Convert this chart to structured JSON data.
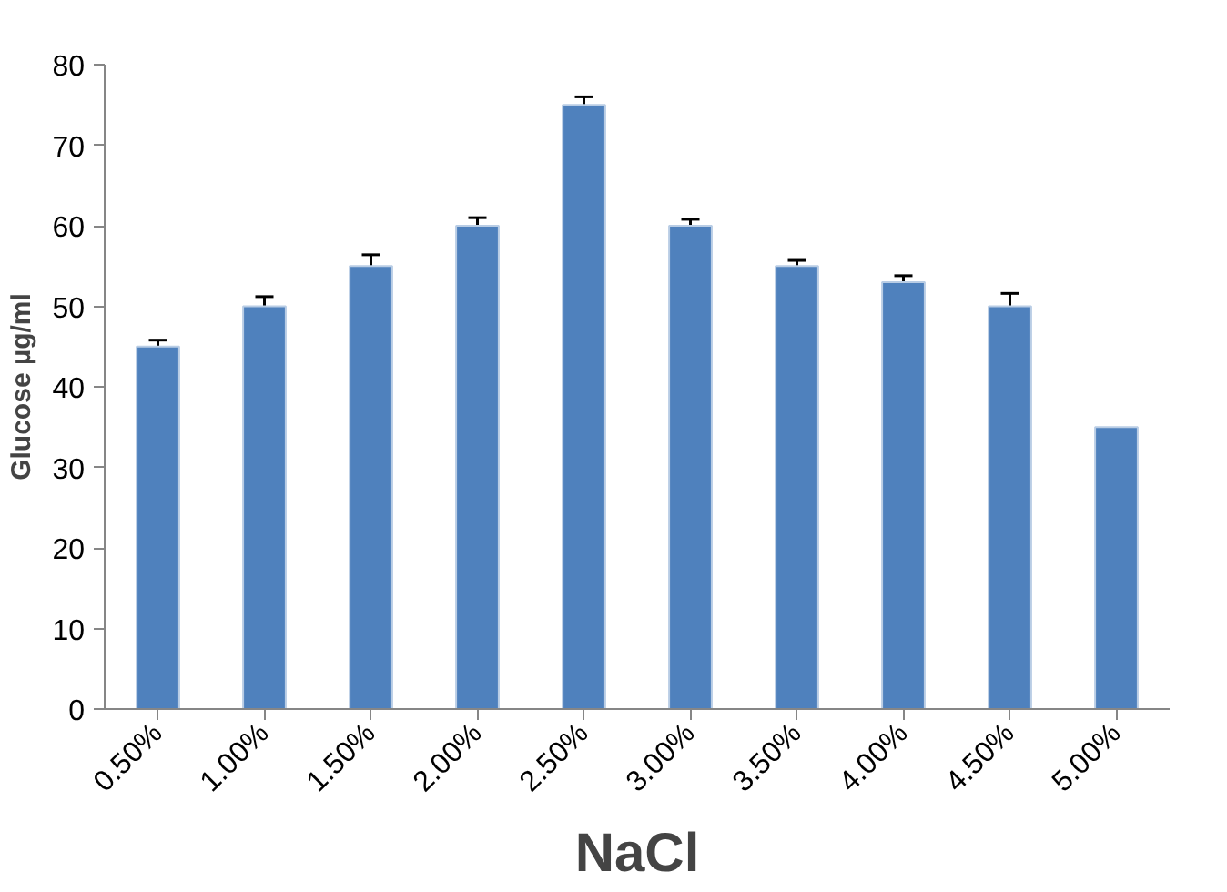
{
  "chart_data": {
    "type": "bar",
    "xlabel": "NaCl",
    "ylabel": "Glucose µg/ml",
    "categories": [
      "0.50%",
      "1.00%",
      "1.50%",
      "2.00%",
      "2.50%",
      "3.00%",
      "3.50%",
      "4.00%",
      "4.50%",
      "5.00%"
    ],
    "values": [
      45,
      50,
      55,
      60,
      75,
      60,
      55,
      53,
      50,
      35
    ],
    "errors": [
      0.8,
      1.2,
      1.4,
      1,
      1,
      0.8,
      0.7,
      0.8,
      1.6,
      null
    ],
    "color": "#4f81bd",
    "ylim": [
      0,
      80
    ],
    "yticks": [
      0,
      10,
      20,
      30,
      40,
      50,
      60,
      70,
      80
    ],
    "grid": false
  }
}
